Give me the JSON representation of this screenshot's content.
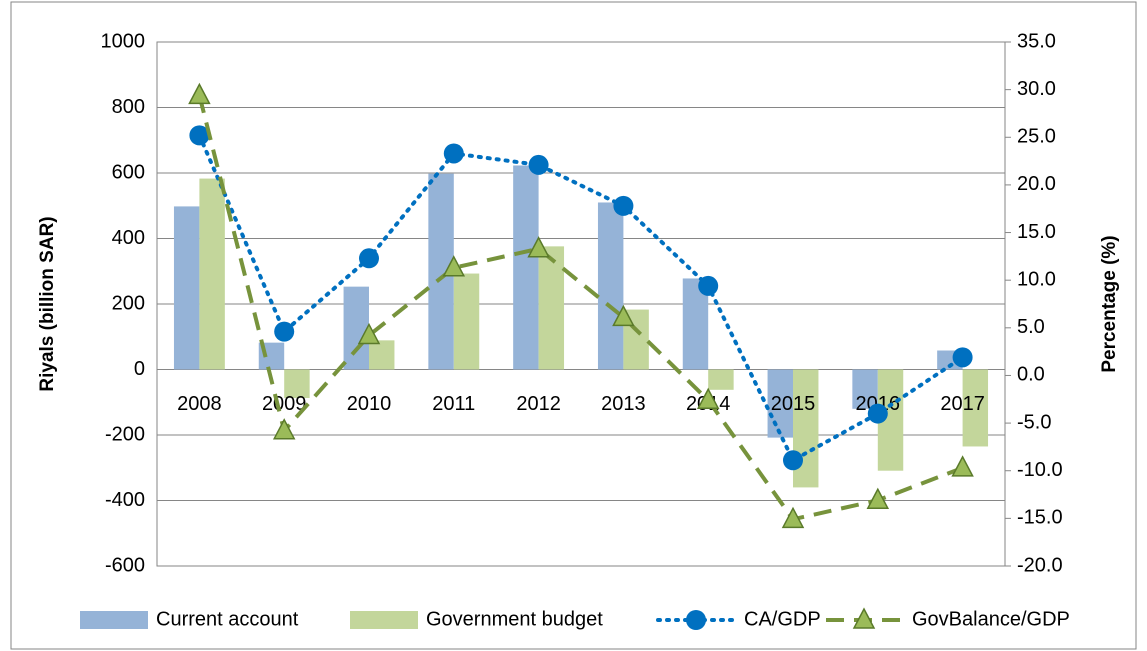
{
  "chart_data": {
    "type": "bar",
    "categories": [
      "2008",
      "2009",
      "2010",
      "2011",
      "2012",
      "2013",
      "2014",
      "2015",
      "2016",
      "2017"
    ],
    "ylabel": "Riyals (billion SAR)",
    "y2label": "Percentage (%)",
    "ylim": [
      -600,
      1000
    ],
    "yticks": [
      -600,
      -400,
      -200,
      0,
      200,
      400,
      600,
      800,
      1000
    ],
    "y2lim": [
      -20,
      35
    ],
    "y2ticks": [
      {
        "value": -20,
        "label": "-20.0"
      },
      {
        "value": -15,
        "label": "-15.0"
      },
      {
        "value": -10,
        "label": "-10.0"
      },
      {
        "value": -5,
        "label": "-5.0"
      },
      {
        "value": 0,
        "label": "0.0"
      },
      {
        "value": 5,
        "label": "5.0"
      },
      {
        "value": 10,
        "label": "10.0"
      },
      {
        "value": 15,
        "label": "15.0"
      },
      {
        "value": 20,
        "label": "20.0"
      },
      {
        "value": 25,
        "label": "25.0"
      },
      {
        "value": 30,
        "label": "30.0"
      },
      {
        "value": 35,
        "label": "35.0"
      }
    ],
    "grid": true,
    "legend": "bottom",
    "series": [
      {
        "name": "Current account",
        "type": "bar",
        "color": "#95b3d7",
        "values": [
          498,
          82,
          253,
          598,
          623,
          510,
          278,
          -208,
          -120,
          58
        ]
      },
      {
        "name": "Government budget",
        "type": "bar",
        "color": "#c3d69b",
        "values": [
          583,
          -87,
          89,
          293,
          376,
          183,
          -62,
          -360,
          -309,
          -235
        ]
      },
      {
        "name": "CA/GDP",
        "type": "line",
        "axis": "y2",
        "color": "#0070c0",
        "dash": "dotted",
        "marker": "circle",
        "values": [
          25.2,
          4.6,
          12.3,
          23.3,
          22.1,
          17.8,
          9.4,
          -8.9,
          -4.0,
          1.9
        ]
      },
      {
        "name": "GovBalance/GDP",
        "type": "line",
        "axis": "y2",
        "color": "#77933c",
        "dash": "dashed",
        "marker": "triangle",
        "values": [
          29.4,
          -5.8,
          4.2,
          11.3,
          13.3,
          6.1,
          -2.6,
          -15.1,
          -13.1,
          -9.7
        ]
      }
    ]
  }
}
